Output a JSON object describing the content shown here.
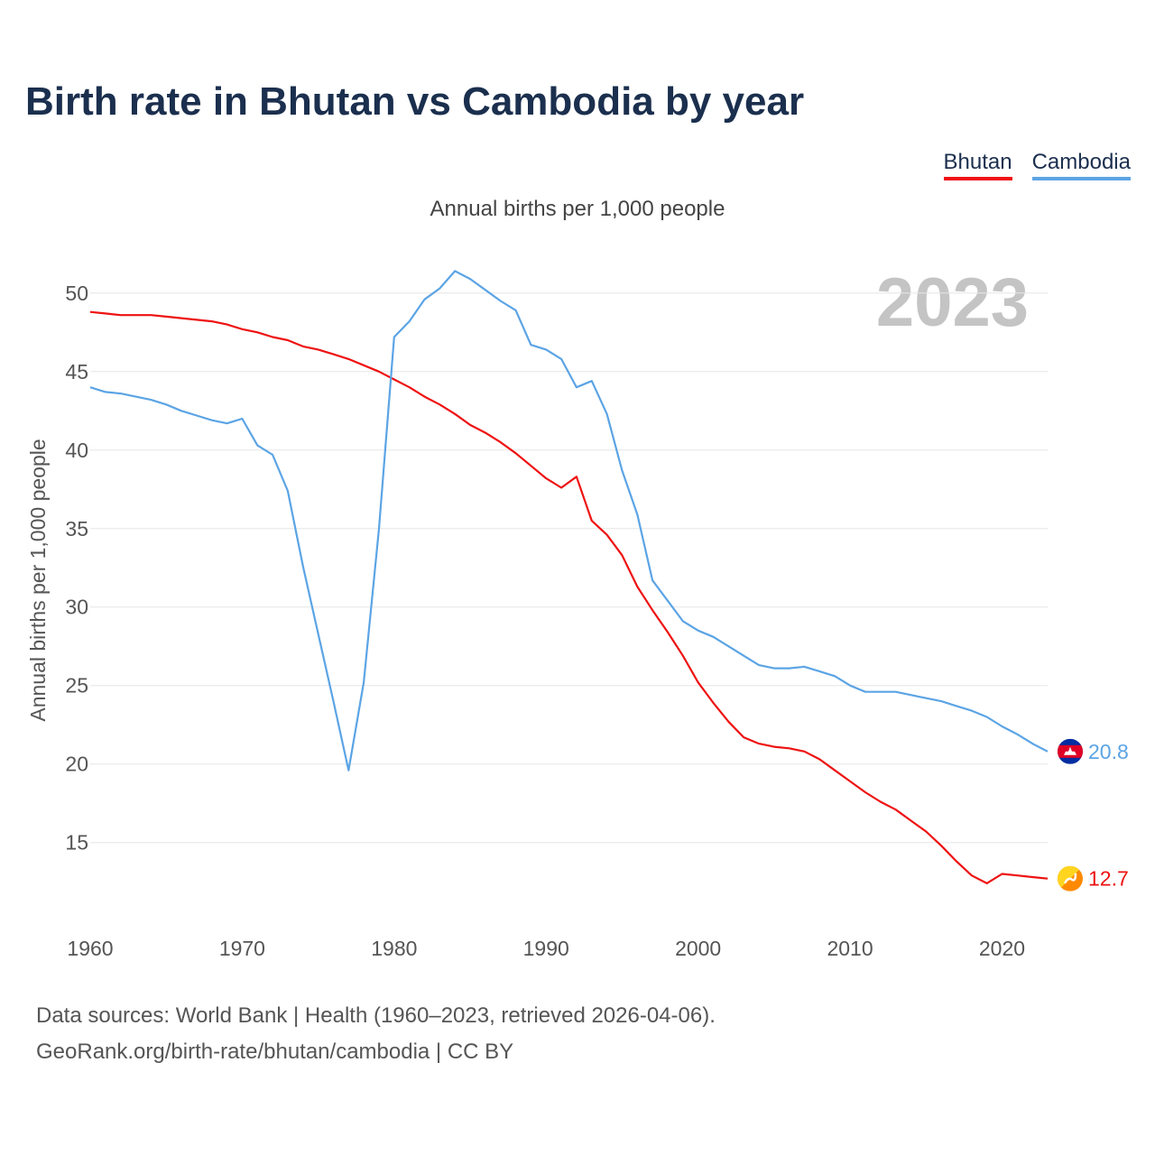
{
  "chart_data": {
    "type": "line",
    "title": "Birth rate in Bhutan vs Cambodia by year",
    "subtitle": "Annual births per 1,000 people",
    "ylabel": "Annual births per 1,000 people",
    "xlabel": "",
    "year_label": "2023",
    "xlim": [
      1960,
      2023
    ],
    "ylim": [
      10.5,
      52
    ],
    "yticks": [
      15,
      20,
      25,
      30,
      35,
      40,
      45,
      50
    ],
    "xticks": [
      1960,
      1970,
      1980,
      1990,
      2000,
      2010,
      2020
    ],
    "x": [
      1960,
      1961,
      1962,
      1963,
      1964,
      1965,
      1966,
      1967,
      1968,
      1969,
      1970,
      1971,
      1972,
      1973,
      1974,
      1975,
      1976,
      1977,
      1978,
      1979,
      1980,
      1981,
      1982,
      1983,
      1984,
      1985,
      1986,
      1987,
      1988,
      1989,
      1990,
      1991,
      1992,
      1993,
      1994,
      1995,
      1996,
      1997,
      1998,
      1999,
      2000,
      2001,
      2002,
      2003,
      2004,
      2005,
      2006,
      2007,
      2008,
      2009,
      2010,
      2011,
      2012,
      2013,
      2014,
      2015,
      2016,
      2017,
      2018,
      2019,
      2020,
      2021,
      2022,
      2023
    ],
    "series": [
      {
        "name": "Bhutan",
        "color": "#ee1111",
        "end_label": "12.7",
        "flag": "bhutan-flag",
        "values": [
          48.8,
          48.7,
          48.6,
          48.6,
          48.6,
          48.5,
          48.4,
          48.3,
          48.2,
          48.0,
          47.7,
          47.5,
          47.2,
          47.0,
          46.6,
          46.4,
          46.1,
          45.8,
          45.4,
          45.0,
          44.5,
          44.0,
          43.4,
          42.9,
          42.3,
          41.6,
          41.1,
          40.5,
          39.8,
          39.0,
          38.2,
          37.6,
          38.3,
          35.5,
          34.6,
          33.3,
          31.3,
          29.8,
          28.4,
          26.9,
          25.2,
          23.9,
          22.7,
          21.7,
          21.3,
          21.1,
          21.0,
          20.8,
          20.3,
          19.6,
          18.9,
          18.2,
          17.6,
          17.1,
          16.4,
          15.7,
          14.8,
          13.8,
          12.9,
          12.4,
          13.0,
          12.9,
          12.8,
          12.7
        ]
      },
      {
        "name": "Cambodia",
        "color": "#5ba4e5",
        "end_label": "20.8",
        "flag": "cambodia-flag",
        "values": [
          44.0,
          43.7,
          43.6,
          43.4,
          43.2,
          42.9,
          42.5,
          42.2,
          41.9,
          41.7,
          42.0,
          40.3,
          39.7,
          37.4,
          32.6,
          28.3,
          24.0,
          19.6,
          25.2,
          35.0,
          47.2,
          48.2,
          49.6,
          50.3,
          51.4,
          50.9,
          50.2,
          49.5,
          48.9,
          46.7,
          46.4,
          45.8,
          44.0,
          44.4,
          42.3,
          38.7,
          35.9,
          31.7,
          30.4,
          29.1,
          28.5,
          28.1,
          27.5,
          26.9,
          26.3,
          26.1,
          26.1,
          26.2,
          25.9,
          25.6,
          25.0,
          24.6,
          24.6,
          24.6,
          24.4,
          24.2,
          24.0,
          23.7,
          23.4,
          23.0,
          22.4,
          21.9,
          21.3,
          20.8
        ]
      }
    ]
  },
  "legend": [
    "Bhutan",
    "Cambodia"
  ],
  "footer": {
    "line1": "Data sources: World Bank | Health (1960–2023, retrieved 2026-04-06).",
    "line2": "GeoRank.org/birth-rate/bhutan/cambodia | CC BY"
  },
  "colors": {
    "title": "#1b2f4e",
    "grid": "#e6e6e6",
    "axis_text": "#555555",
    "year_watermark": "#c4c4c4"
  }
}
